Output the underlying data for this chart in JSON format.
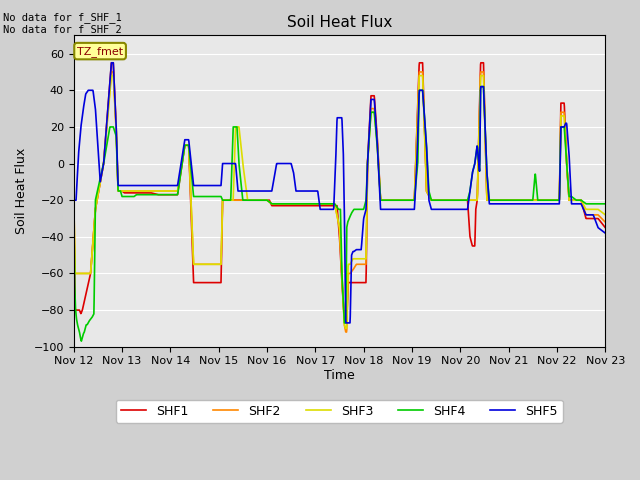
{
  "title": "Soil Heat Flux",
  "ylabel": "Soil Heat Flux",
  "xlabel": "Time",
  "ylim": [
    -100,
    70
  ],
  "bg_color": "#d0d0d0",
  "plot_bg_color": "#e8e8e8",
  "series_colors": {
    "SHF1": "#dd0000",
    "SHF2": "#ff8800",
    "SHF3": "#dddd00",
    "SHF4": "#00cc00",
    "SHF5": "#0000dd"
  },
  "legend_labels": [
    "SHF1",
    "SHF2",
    "SHF3",
    "SHF4",
    "SHF5"
  ],
  "annotation_text": "No data for f_SHF_1\nNo data for f_SHF_2",
  "box_label": "TZ_fmet",
  "yticks": [
    -100,
    -80,
    -60,
    -40,
    -20,
    0,
    20,
    40,
    60
  ],
  "xtick_labels": [
    "Nov 12",
    "Nov 13",
    "Nov 14",
    "Nov 15",
    "Nov 16",
    "Nov 17",
    "Nov 18",
    "Nov 19",
    "Nov 20",
    "Nov 21",
    "Nov 22",
    "Nov 23"
  ]
}
